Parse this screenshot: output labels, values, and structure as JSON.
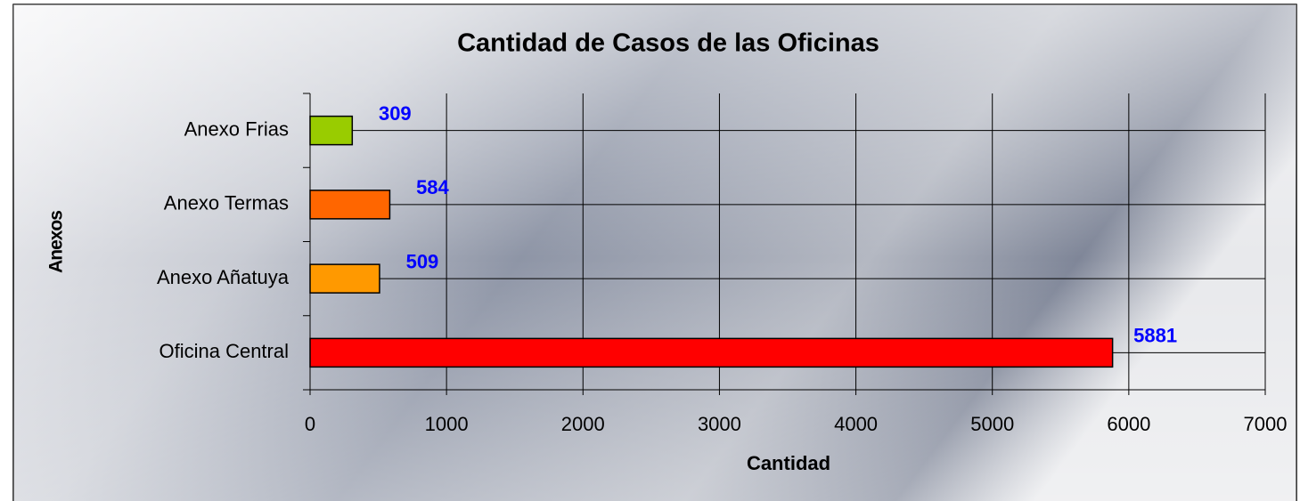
{
  "chart_data": {
    "type": "bar",
    "orientation": "horizontal",
    "title": "Cantidad de Casos de las Oficinas",
    "x_label": "Cantidad",
    "y_label": "Anexos",
    "categories": [
      "Anexo Frias",
      "Anexo Termas",
      "Anexo Añatuya",
      "Oficina Central"
    ],
    "values": [
      309,
      584,
      509,
      5881
    ],
    "colors": [
      "#99cc00",
      "#ff6600",
      "#ff9900",
      "#ff0000"
    ],
    "value_label_color": "#0000ff",
    "xlim": [
      0,
      7000
    ],
    "xticks": [
      0,
      1000,
      2000,
      3000,
      4000,
      5000,
      6000,
      7000
    ],
    "grid": true
  }
}
